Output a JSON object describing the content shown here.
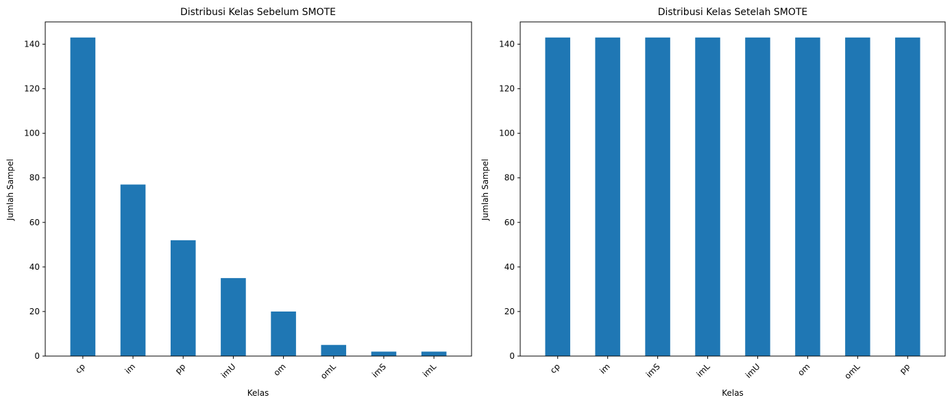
{
  "chart_data": [
    {
      "type": "bar",
      "title": "Distribusi Kelas Sebelum SMOTE",
      "xlabel": "Kelas",
      "ylabel": "Jumlah Sampel",
      "categories": [
        "cp",
        "im",
        "pp",
        "imU",
        "om",
        "omL",
        "imS",
        "imL"
      ],
      "values": [
        143,
        77,
        52,
        35,
        20,
        5,
        2,
        2
      ],
      "ylim": [
        0,
        150
      ],
      "yticks": [
        0,
        20,
        40,
        60,
        80,
        100,
        120,
        140
      ],
      "bar_color": "#1f77b4",
      "grid": false,
      "legend": "none"
    },
    {
      "type": "bar",
      "title": "Distribusi Kelas Setelah SMOTE",
      "xlabel": "Kelas",
      "ylabel": "Jumlah Sampel",
      "categories": [
        "cp",
        "im",
        "imS",
        "imL",
        "imU",
        "om",
        "omL",
        "pp"
      ],
      "values": [
        143,
        143,
        143,
        143,
        143,
        143,
        143,
        143
      ],
      "ylim": [
        0,
        150
      ],
      "yticks": [
        0,
        20,
        40,
        60,
        80,
        100,
        120,
        140
      ],
      "bar_color": "#1f77b4",
      "grid": false,
      "legend": "none"
    }
  ]
}
